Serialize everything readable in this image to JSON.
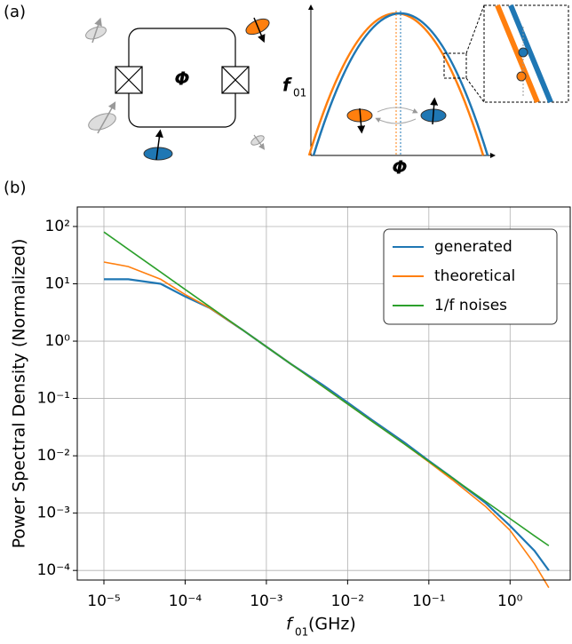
{
  "panel_a": {
    "label": "(a)",
    "loop_flux": "Φ",
    "y_label": "f",
    "y_label_sub": "01",
    "x_label": "Φ"
  },
  "chart_data": {
    "type": "line",
    "panel_label": "(b)",
    "ylabel": "Power Spectral Density (Normalized)",
    "xlabel": "f",
    "xlabel_sub": "01",
    "xlabel_unit": "(GHz)",
    "xscale": "log",
    "yscale": "log",
    "grid": true,
    "legend": "upper right",
    "x": [
      1e-05,
      2e-05,
      5e-05,
      0.0001,
      0.0002,
      0.0005,
      0.001,
      0.002,
      0.005,
      0.01,
      0.02,
      0.05,
      0.1,
      0.2,
      0.5,
      1,
      2,
      3
    ],
    "series": [
      {
        "name": "generated",
        "color": "#1f77b4",
        "values": [
          12,
          12,
          10,
          6,
          3.8,
          1.6,
          0.8,
          0.4,
          0.17,
          0.085,
          0.042,
          0.017,
          0.0082,
          0.004,
          0.0015,
          0.0006,
          0.00022,
          0.0001
        ]
      },
      {
        "name": "theoretical",
        "color": "#ff7f0e",
        "values": [
          24,
          20,
          12,
          6.5,
          3.8,
          1.6,
          0.8,
          0.4,
          0.16,
          0.08,
          0.04,
          0.016,
          0.0078,
          0.0037,
          0.0013,
          0.0005,
          0.00013,
          5e-05
        ]
      },
      {
        "name": "1/f noises",
        "color": "#2ca02c",
        "values": [
          80,
          40,
          16,
          8,
          4,
          1.6,
          0.8,
          0.4,
          0.16,
          0.08,
          0.04,
          0.016,
          0.008,
          0.004,
          0.0016,
          0.0008,
          0.0004,
          0.00027
        ]
      }
    ],
    "xlim": [
      4.7e-06,
      5.5
    ],
    "ylim": [
      6.8e-05,
      219
    ],
    "xticks": [
      {
        "value": 1e-05,
        "label": "10⁻⁵"
      },
      {
        "value": 0.0001,
        "label": "10⁻⁴"
      },
      {
        "value": 0.001,
        "label": "10⁻³"
      },
      {
        "value": 0.01,
        "label": "10⁻²"
      },
      {
        "value": 0.1,
        "label": "10⁻¹"
      },
      {
        "value": 1,
        "label": "10⁰"
      }
    ],
    "yticks": [
      {
        "value": 0.0001,
        "label": "10⁻⁴"
      },
      {
        "value": 0.001,
        "label": "10⁻³"
      },
      {
        "value": 0.01,
        "label": "10⁻²"
      },
      {
        "value": 0.1,
        "label": "10⁻¹"
      },
      {
        "value": 1,
        "label": "10⁰"
      },
      {
        "value": 10,
        "label": "10¹"
      },
      {
        "value": 100,
        "label": "10²"
      }
    ]
  }
}
